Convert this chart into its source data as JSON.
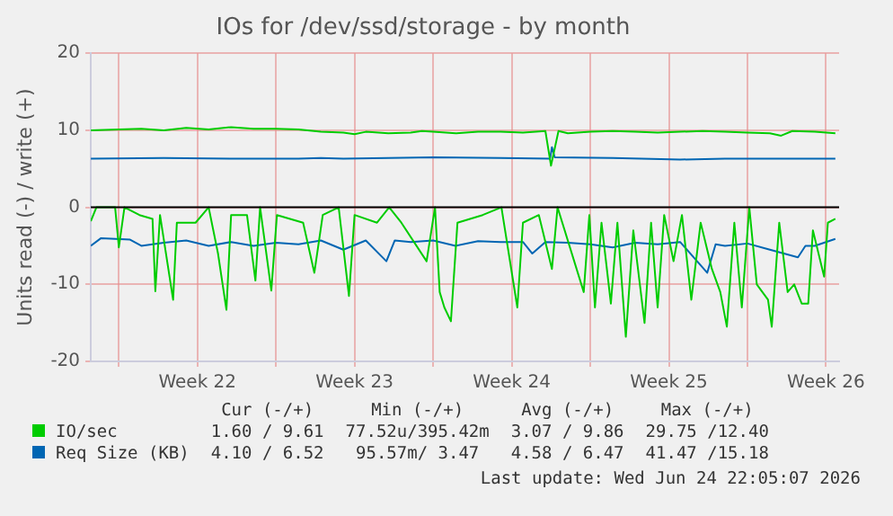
{
  "chart_data": {
    "type": "line",
    "title": "IOs for /dev/ssd/storage - by month",
    "ylabel": "Units read (-) / write (+)",
    "xlim": [
      "2026-05-23T18:00",
      "2026-06-26T02:00"
    ],
    "xticks": [
      {
        "value": "2026-05-25T00:00",
        "label": null
      },
      {
        "value": "2026-05-28T12:00",
        "label": "Week 22"
      },
      {
        "value": "2026-06-01T00:00",
        "label": null
      },
      {
        "value": "2026-06-04T12:00",
        "label": "Week 23"
      },
      {
        "value": "2026-06-08T00:00",
        "label": null
      },
      {
        "value": "2026-06-11T12:00",
        "label": "Week 24"
      },
      {
        "value": "2026-06-15T00:00",
        "label": null
      },
      {
        "value": "2026-06-18T12:00",
        "label": "Week 25"
      },
      {
        "value": "2026-06-22T00:00",
        "label": null
      },
      {
        "value": "2026-06-25T12:00",
        "label": "Week 26"
      }
    ],
    "ylim": [
      -20,
      20
    ],
    "yticks": [
      -20,
      -10,
      0,
      10,
      20
    ],
    "grid": true,
    "legend": "bottom",
    "ref_lines": [
      {
        "axis": "y",
        "value": 0,
        "color": "#000000"
      }
    ],
    "series": [
      {
        "name": "IO/sec",
        "color": "#00cc00",
        "x": [
          "2026-05-23T18:00",
          "2026-05-25T00:00",
          "2026-05-26T00:00",
          "2026-05-27T00:00",
          "2026-05-28T00:00",
          "2026-05-29T00:00",
          "2026-05-30T00:00",
          "2026-05-31T00:00",
          "2026-06-01T00:00",
          "2026-06-02T00:00",
          "2026-06-03T00:00",
          "2026-06-04T00:00",
          "2026-06-04T12:00",
          "2026-06-05T00:00",
          "2026-06-06T00:00",
          "2026-06-07T00:00",
          "2026-06-07T12:00",
          "2026-06-08T00:00",
          "2026-06-09T00:00",
          "2026-06-10T00:00",
          "2026-06-11T00:00",
          "2026-06-12T00:00",
          "2026-06-13T00:00",
          "2026-06-13T06:00",
          "2026-06-13T14:00",
          "2026-06-14T00:00",
          "2026-06-15T00:00",
          "2026-06-16T00:00",
          "2026-06-17T00:00",
          "2026-06-18T00:00",
          "2026-06-19T00:00",
          "2026-06-20T00:00",
          "2026-06-21T00:00",
          "2026-06-22T00:00",
          "2026-06-23T00:00",
          "2026-06-23T12:00",
          "2026-06-24T00:00",
          "2026-06-25T00:00",
          "2026-06-25T22:00"
        ],
        "values": [
          10,
          10.1,
          10.2,
          10,
          10.3,
          10.1,
          10.4,
          10.2,
          10.2,
          10.1,
          9.8,
          9.7,
          9.5,
          9.8,
          9.6,
          9.7,
          9.9,
          9.8,
          9.6,
          9.8,
          9.8,
          9.7,
          9.9,
          5.4,
          9.9,
          9.6,
          9.8,
          9.9,
          9.8,
          9.7,
          9.8,
          9.9,
          9.8,
          9.7,
          9.6,
          9.3,
          9.9,
          9.8,
          9.6
        ]
      },
      {
        "color": "#00cc00",
        "x": [
          "2026-05-23T18:00",
          "2026-05-24T00:00",
          "2026-05-24T20:00",
          "2026-05-25T00:00",
          "2026-05-25T06:00",
          "2026-05-25T22:00",
          "2026-05-26T12:00",
          "2026-05-26T15:00",
          "2026-05-26T20:00",
          "2026-05-27T10:00",
          "2026-05-27T14:00",
          "2026-05-28T10:00",
          "2026-05-29T00:00",
          "2026-05-29T10:00",
          "2026-05-29T19:00",
          "2026-05-30T00:00",
          "2026-05-30T17:00",
          "2026-05-31T02:00",
          "2026-05-31T07:00",
          "2026-05-31T19:00",
          "2026-06-01T01:00",
          "2026-06-02T05:00",
          "2026-06-02T17:00",
          "2026-06-03T02:00",
          "2026-06-03T19:00",
          "2026-06-04T06:00",
          "2026-06-04T12:00",
          "2026-06-05T12:00",
          "2026-06-06T01:00",
          "2026-06-06T14:00",
          "2026-06-07T17:00",
          "2026-06-08T02:00",
          "2026-06-08T07:00",
          "2026-06-08T12:00",
          "2026-06-08T19:00",
          "2026-06-09T02:00",
          "2026-06-10T05:00",
          "2026-06-11T01:00",
          "2026-06-11T18:00",
          "2026-06-12T00:00",
          "2026-06-12T17:00",
          "2026-06-13T07:00",
          "2026-06-13T13:00",
          "2026-06-14T17:00",
          "2026-06-14T23:00",
          "2026-06-15T05:00",
          "2026-06-15T12:00",
          "2026-06-15T22:00",
          "2026-06-16T05:00",
          "2026-06-16T14:00",
          "2026-06-16T22:00",
          "2026-06-17T10:00",
          "2026-06-17T17:00",
          "2026-06-18T00:00",
          "2026-06-18T07:00",
          "2026-06-18T17:00",
          "2026-06-19T02:00",
          "2026-06-19T12:00",
          "2026-06-19T22:00",
          "2026-06-20T10:00",
          "2026-06-20T19:00",
          "2026-06-21T02:00",
          "2026-06-21T10:00",
          "2026-06-21T18:00",
          "2026-06-22T02:00",
          "2026-06-22T10:00",
          "2026-06-22T22:00",
          "2026-06-23T02:00",
          "2026-06-23T10:00",
          "2026-06-23T19:00",
          "2026-06-24T02:00",
          "2026-06-24T10:00",
          "2026-06-24T17:00",
          "2026-06-24T22:00",
          "2026-06-25T10:00",
          "2026-06-25T14:00",
          "2026-06-25T22:00"
        ],
        "values": [
          -1.8,
          0,
          0,
          -5.2,
          0,
          -1,
          -1.5,
          -10.9,
          -1,
          -12,
          -2,
          -2,
          0,
          -6,
          -13.3,
          -1,
          -1,
          -9.5,
          0,
          -10.8,
          -1,
          -2,
          -8.5,
          -1,
          0,
          -11.5,
          -1,
          -2,
          0,
          -2,
          -7,
          0,
          -11,
          -13,
          -14.8,
          -2,
          -1,
          0,
          -13,
          -2,
          -1,
          -8,
          0,
          -11,
          -1,
          -13,
          -2,
          -12.5,
          -2,
          -16.8,
          -3,
          -15,
          -2,
          -13,
          -1,
          -7,
          -1,
          -12,
          -2,
          -8,
          -11,
          -15.5,
          -2,
          -13,
          0,
          -10,
          -12,
          -15.5,
          -2,
          -11,
          -10,
          -12.5,
          -12.5,
          -3,
          -9,
          -2,
          -1.5
        ]
      },
      {
        "name": "Req Size (KB)",
        "color": "#0066b3",
        "x": [
          "2026-05-23T18:00",
          "2026-05-27T00:00",
          "2026-05-30T00:00",
          "2026-06-02T00:00",
          "2026-06-03T00:00",
          "2026-06-04T00:00",
          "2026-06-06T00:00",
          "2026-06-08T00:00",
          "2026-06-11T00:00",
          "2026-06-13T05:00",
          "2026-06-13T07:00",
          "2026-06-13T10:00",
          "2026-06-16T00:00",
          "2026-06-19T00:00",
          "2026-06-21T00:00",
          "2026-06-23T00:00",
          "2026-06-25T22:00"
        ],
        "values": [
          6.3,
          6.4,
          6.3,
          6.3,
          6.4,
          6.3,
          6.4,
          6.5,
          6.4,
          6.3,
          7.8,
          6.5,
          6.4,
          6.2,
          6.3,
          6.3,
          6.3
        ]
      },
      {
        "color": "#0066b3",
        "x": [
          "2026-05-23T18:00",
          "2026-05-24T05:00",
          "2026-05-25T12:00",
          "2026-05-26T00:00",
          "2026-05-27T00:00",
          "2026-05-28T00:00",
          "2026-05-29T00:00",
          "2026-05-30T00:00",
          "2026-05-31T00:00",
          "2026-06-01T00:00",
          "2026-06-02T00:00",
          "2026-06-03T00:00",
          "2026-06-04T00:00",
          "2026-06-05T00:00",
          "2026-06-05T22:00",
          "2026-06-06T07:00",
          "2026-06-07T00:00",
          "2026-06-08T00:00",
          "2026-06-09T00:00",
          "2026-06-10T00:00",
          "2026-06-11T00:00",
          "2026-06-12T00:00",
          "2026-06-12T10:00",
          "2026-06-13T00:00",
          "2026-06-14T00:00",
          "2026-06-15T00:00",
          "2026-06-16T00:00",
          "2026-06-17T00:00",
          "2026-06-18T00:00",
          "2026-06-19T00:00",
          "2026-06-20T05:00",
          "2026-06-20T14:00",
          "2026-06-21T00:00",
          "2026-06-22T00:00",
          "2026-06-23T00:00",
          "2026-06-24T06:00",
          "2026-06-24T14:00",
          "2026-06-25T00:00",
          "2026-06-25T22:00"
        ],
        "values": [
          -5,
          -4,
          -4.2,
          -5,
          -4.6,
          -4.3,
          -5,
          -4.5,
          -5,
          -4.6,
          -4.8,
          -4.3,
          -5.5,
          -4.3,
          -7,
          -4.3,
          -4.5,
          -4.3,
          -5,
          -4.4,
          -4.5,
          -4.5,
          -6,
          -4.5,
          -4.6,
          -4.8,
          -5.2,
          -4.6,
          -4.8,
          -4.5,
          -8.5,
          -4.8,
          -5,
          -4.7,
          -5.5,
          -6.5,
          -5,
          -5,
          -4.1
        ]
      }
    ],
    "annotations": [
      "Cur (-/+)",
      "Min (-/+)",
      "Avg (-/+)",
      "Max (-/+)",
      "1.60 / 9.61",
      "77.52u/395.42m",
      "3.07 / 9.86",
      "29.75 /12.40",
      "4.10 / 6.52",
      "95.57m/ 3.47",
      "4.58 / 6.47",
      "41.47 /15.18",
      "Last update: Wed Jun 24 22:05:07 2026"
    ]
  }
}
